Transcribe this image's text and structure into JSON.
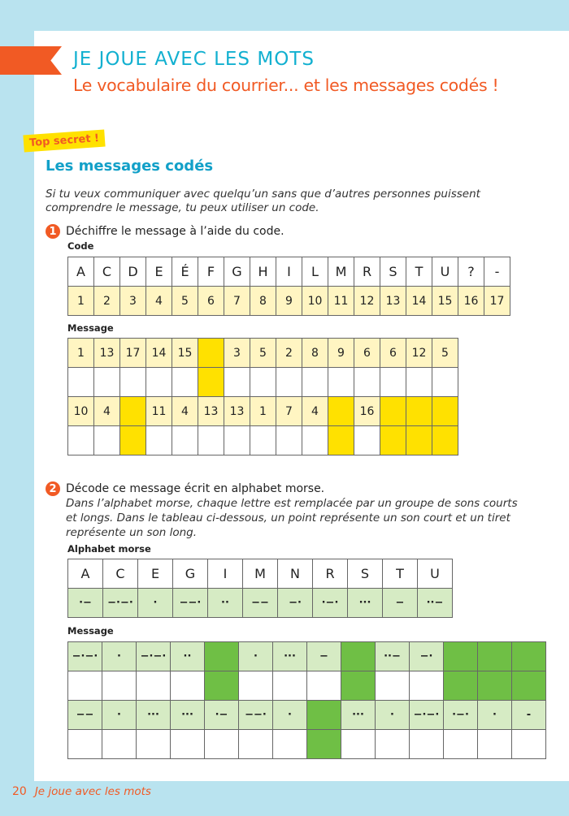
{
  "header": {
    "title": "JE JOUE AVEC LES MOTS",
    "subtitle": "Le vocabulaire du courrier... et les messages codés !"
  },
  "badge": "Top secret !",
  "section_title": "Les messages codés",
  "intro": "Si tu veux communiquer avec quelqu’un sans que d’autres personnes puissent comprendre le message, tu peux utiliser un code.",
  "exercise1": {
    "number": "1",
    "instruction": "Déchiffre le message à l’aide du code.",
    "code_label": "Code",
    "code_letters": [
      "A",
      "C",
      "D",
      "E",
      "É",
      "F",
      "G",
      "H",
      "I",
      "L",
      "M",
      "R",
      "S",
      "T",
      "U",
      "?",
      "-"
    ],
    "code_numbers": [
      "1",
      "2",
      "3",
      "4",
      "5",
      "6",
      "7",
      "8",
      "9",
      "10",
      "11",
      "12",
      "13",
      "14",
      "15",
      "16",
      "17"
    ],
    "message_label": "Message",
    "message_rows": [
      [
        "1",
        "13",
        "17",
        "14",
        "15",
        null,
        "3",
        "5",
        "2",
        "8",
        "9",
        "6",
        "6",
        "12",
        "5"
      ],
      [
        "10",
        "4",
        null,
        "11",
        "4",
        "13",
        "13",
        "1",
        "7",
        "4",
        null,
        "16",
        null,
        null,
        null
      ]
    ]
  },
  "exercise2": {
    "number": "2",
    "instruction": "Décode ce message écrit en alphabet morse.",
    "explanation": "Dans l’alphabet morse, chaque lettre est remplacée par un groupe de sons courts et longs. Dans le tableau ci-dessous, un point représente un son court et un tiret représente un son long.",
    "alphabet_label": "Alphabet morse",
    "morse_letters": [
      "A",
      "C",
      "E",
      "G",
      "I",
      "M",
      "N",
      "R",
      "S",
      "T",
      "U"
    ],
    "morse_codes": [
      "·−",
      "−·−·",
      "·",
      "−−·",
      "··",
      "−−",
      "−·",
      "·−·",
      "···",
      "−",
      "··−"
    ],
    "message_label": "Message",
    "message_rows": [
      [
        "−·−·",
        "·",
        "−·−·",
        "··",
        null,
        "·",
        "···",
        "−",
        null,
        "··−",
        "−·",
        null,
        null,
        null
      ],
      [
        "−−",
        "·",
        "···",
        "···",
        "·−",
        "−−·",
        "·",
        null,
        "···",
        "·",
        "−·−·",
        "·−·",
        "·",
        "-"
      ]
    ]
  },
  "colors": {
    "accent_orange": "#f15a24",
    "accent_blue": "#12b0d0",
    "code_yellow": "#ffe100",
    "morse_green": "#6fbf45"
  },
  "footer": {
    "page_number": "20",
    "chapter": "Je joue avec les mots"
  }
}
